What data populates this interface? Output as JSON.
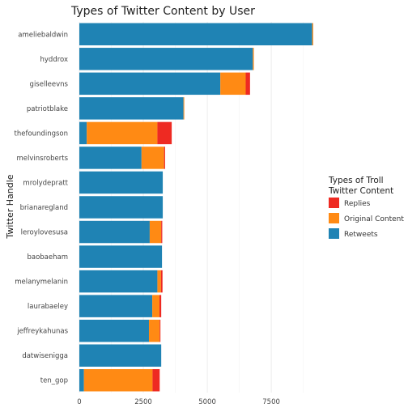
{
  "chart_data": {
    "type": "bar",
    "orientation": "horizontal",
    "stacked": true,
    "title": "Types of Twitter Content by User",
    "xlabel": "",
    "ylabel": "Twitter Handle",
    "xlim": [
      0,
      9300
    ],
    "xticks": [
      "0",
      "2500",
      "5000",
      "7500"
    ],
    "xtick_values": [
      0,
      2500,
      5000,
      7500
    ],
    "grid": true,
    "legend_placement": "right",
    "legend_title_line1": "Types of Troll",
    "legend_title_line2": "Twitter Content",
    "categories": [
      "ameliebaldwin",
      "hyddrox",
      "giselleevns",
      "patriotblake",
      "thefoundingson",
      "melvinsroberts",
      "mrolydepratt",
      "brianaregland",
      "leroylovesusa",
      "baobaeham",
      "melanymelanin",
      "laurabaeley",
      "jeffreykahunas",
      "datwisenigga",
      "ten_gop"
    ],
    "series": [
      {
        "name": "Retweets",
        "color": "#1f83b4",
        "values": [
          9100,
          6780,
          5510,
          4070,
          290,
          2430,
          3260,
          3260,
          2750,
          3230,
          3050,
          2850,
          2720,
          3200,
          180
        ]
      },
      {
        "name": "Original Content",
        "color": "#ff8a14",
        "values": [
          40,
          40,
          990,
          30,
          2760,
          880,
          0,
          0,
          450,
          0,
          140,
          280,
          420,
          0,
          2680
        ]
      },
      {
        "name": "Replies",
        "color": "#ee2a22",
        "values": [
          0,
          0,
          170,
          0,
          560,
          40,
          0,
          0,
          40,
          0,
          60,
          70,
          30,
          0,
          280
        ]
      }
    ],
    "legend_order": [
      "Replies",
      "Original Content",
      "Retweets"
    ]
  }
}
